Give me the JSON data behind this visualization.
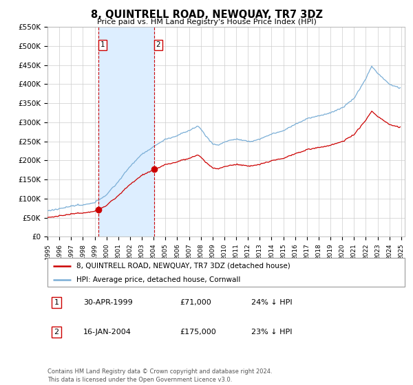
{
  "title": "8, QUINTRELL ROAD, NEWQUAY, TR7 3DZ",
  "subtitle": "Price paid vs. HM Land Registry's House Price Index (HPI)",
  "legend_line1": "8, QUINTRELL ROAD, NEWQUAY, TR7 3DZ (detached house)",
  "legend_line2": "HPI: Average price, detached house, Cornwall",
  "transaction1_date": "30-APR-1999",
  "transaction1_price": "£71,000",
  "transaction1_hpi": "24% ↓ HPI",
  "transaction1_year": 1999.33,
  "transaction1_value": 71000,
  "transaction2_date": "16-JAN-2004",
  "transaction2_price": "£175,000",
  "transaction2_hpi": "23% ↓ HPI",
  "transaction2_year": 2004.05,
  "transaction2_value": 175000,
  "red_line_color": "#cc0000",
  "blue_line_color": "#7aaed6",
  "shade_color": "#ddeeff",
  "vline_color": "#cc0000",
  "footnote": "Contains HM Land Registry data © Crown copyright and database right 2024.\nThis data is licensed under the Open Government Licence v3.0.",
  "ylim": [
    0,
    550000
  ],
  "yticks": [
    0,
    50000,
    100000,
    150000,
    200000,
    250000,
    300000,
    350000,
    400000,
    450000,
    500000,
    550000
  ],
  "ytick_labels": [
    "£0",
    "£50K",
    "£100K",
    "£150K",
    "£200K",
    "£250K",
    "£300K",
    "£350K",
    "£400K",
    "£450K",
    "£500K",
    "£550K"
  ]
}
